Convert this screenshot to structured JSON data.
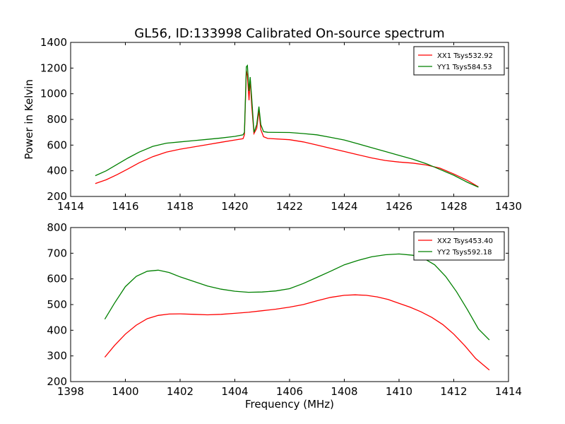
{
  "figure": {
    "title": "GL56, ID:133998 Calibrated On-source spectrum",
    "ylabel": "Power in Kelvin",
    "xlabel": "Frequency (MHz)"
  },
  "chart_data": [
    {
      "type": "line",
      "xlim": [
        1414,
        1430
      ],
      "ylim": [
        200,
        1400
      ],
      "xticks": [
        1414,
        1416,
        1418,
        1420,
        1422,
        1424,
        1426,
        1428,
        1430
      ],
      "yticks": [
        200,
        400,
        600,
        800,
        1000,
        1200,
        1400
      ],
      "legend_position": "top-right",
      "series": [
        {
          "name": "XX1 Tsys532.92",
          "color": "#ff0000",
          "points": [
            [
              1414.9,
              300
            ],
            [
              1415.3,
              330
            ],
            [
              1415.7,
              370
            ],
            [
              1416.1,
              415
            ],
            [
              1416.5,
              462
            ],
            [
              1417.0,
              510
            ],
            [
              1417.5,
              545
            ],
            [
              1418.0,
              568
            ],
            [
              1418.5,
              586
            ],
            [
              1419.0,
              604
            ],
            [
              1419.5,
              622
            ],
            [
              1420.0,
              640
            ],
            [
              1420.3,
              650
            ],
            [
              1420.35,
              680
            ],
            [
              1420.42,
              1180
            ],
            [
              1420.46,
              1140
            ],
            [
              1420.52,
              950
            ],
            [
              1420.56,
              1120
            ],
            [
              1420.62,
              900
            ],
            [
              1420.7,
              690
            ],
            [
              1420.8,
              730
            ],
            [
              1420.88,
              870
            ],
            [
              1420.95,
              720
            ],
            [
              1421.05,
              665
            ],
            [
              1421.2,
              652
            ],
            [
              1422.0,
              642
            ],
            [
              1422.5,
              625
            ],
            [
              1423.0,
              600
            ],
            [
              1423.5,
              575
            ],
            [
              1424.0,
              550
            ],
            [
              1424.5,
              525
            ],
            [
              1425.0,
              500
            ],
            [
              1425.5,
              480
            ],
            [
              1426.0,
              468
            ],
            [
              1426.5,
              460
            ],
            [
              1427.0,
              445
            ],
            [
              1427.5,
              420
            ],
            [
              1428.0,
              375
            ],
            [
              1428.5,
              325
            ],
            [
              1428.9,
              275
            ]
          ]
        },
        {
          "name": "YY1 Tsys584.53",
          "color": "#008000",
          "points": [
            [
              1414.9,
              362
            ],
            [
              1415.3,
              400
            ],
            [
              1415.7,
              450
            ],
            [
              1416.1,
              500
            ],
            [
              1416.5,
              545
            ],
            [
              1417.0,
              590
            ],
            [
              1417.5,
              615
            ],
            [
              1418.0,
              625
            ],
            [
              1418.5,
              635
            ],
            [
              1419.0,
              645
            ],
            [
              1419.5,
              655
            ],
            [
              1420.0,
              668
            ],
            [
              1420.3,
              680
            ],
            [
              1420.35,
              700
            ],
            [
              1420.42,
              1210
            ],
            [
              1420.46,
              1220
            ],
            [
              1420.52,
              1020
            ],
            [
              1420.56,
              1130
            ],
            [
              1420.62,
              960
            ],
            [
              1420.7,
              700
            ],
            [
              1420.8,
              760
            ],
            [
              1420.88,
              900
            ],
            [
              1420.95,
              760
            ],
            [
              1421.05,
              705
            ],
            [
              1421.2,
              700
            ],
            [
              1422.0,
              698
            ],
            [
              1422.5,
              690
            ],
            [
              1423.0,
              680
            ],
            [
              1423.5,
              660
            ],
            [
              1424.0,
              640
            ],
            [
              1424.5,
              610
            ],
            [
              1425.0,
              580
            ],
            [
              1425.5,
              550
            ],
            [
              1426.0,
              520
            ],
            [
              1426.5,
              490
            ],
            [
              1427.0,
              455
            ],
            [
              1427.5,
              410
            ],
            [
              1428.0,
              365
            ],
            [
              1428.5,
              310
            ],
            [
              1428.9,
              272
            ]
          ]
        }
      ]
    },
    {
      "type": "line",
      "xlim": [
        1398,
        1414
      ],
      "ylim": [
        200,
        800
      ],
      "xticks": [
        1398,
        1400,
        1402,
        1404,
        1406,
        1408,
        1410,
        1412,
        1414
      ],
      "yticks": [
        200,
        300,
        400,
        500,
        600,
        700,
        800
      ],
      "legend_position": "top-right",
      "series": [
        {
          "name": "XX2 Tsys453.40",
          "color": "#ff0000",
          "points": [
            [
              1399.25,
              295
            ],
            [
              1399.6,
              340
            ],
            [
              1400.0,
              385
            ],
            [
              1400.4,
              420
            ],
            [
              1400.8,
              445
            ],
            [
              1401.2,
              458
            ],
            [
              1401.6,
              463
            ],
            [
              1402.0,
              464
            ],
            [
              1402.5,
              462
            ],
            [
              1403.0,
              460
            ],
            [
              1403.5,
              462
            ],
            [
              1404.0,
              466
            ],
            [
              1404.5,
              470
            ],
            [
              1405.0,
              476
            ],
            [
              1405.5,
              482
            ],
            [
              1406.0,
              490
            ],
            [
              1406.5,
              500
            ],
            [
              1407.0,
              515
            ],
            [
              1407.5,
              528
            ],
            [
              1408.0,
              536
            ],
            [
              1408.4,
              538
            ],
            [
              1408.8,
              536
            ],
            [
              1409.2,
              530
            ],
            [
              1409.6,
              520
            ],
            [
              1410.0,
              505
            ],
            [
              1410.4,
              490
            ],
            [
              1410.8,
              472
            ],
            [
              1411.2,
              450
            ],
            [
              1411.6,
              422
            ],
            [
              1412.0,
              385
            ],
            [
              1412.4,
              340
            ],
            [
              1412.8,
              290
            ],
            [
              1413.3,
              245
            ]
          ]
        },
        {
          "name": "YY2 Tsys592.18",
          "color": "#008000",
          "points": [
            [
              1399.25,
              443
            ],
            [
              1399.6,
              505
            ],
            [
              1400.0,
              570
            ],
            [
              1400.4,
              610
            ],
            [
              1400.8,
              630
            ],
            [
              1401.2,
              634
            ],
            [
              1401.6,
              625
            ],
            [
              1402.0,
              608
            ],
            [
              1402.5,
              590
            ],
            [
              1403.0,
              572
            ],
            [
              1403.5,
              560
            ],
            [
              1404.0,
              552
            ],
            [
              1404.5,
              548
            ],
            [
              1405.0,
              549
            ],
            [
              1405.5,
              553
            ],
            [
              1406.0,
              562
            ],
            [
              1406.5,
              582
            ],
            [
              1407.0,
              606
            ],
            [
              1407.5,
              630
            ],
            [
              1408.0,
              655
            ],
            [
              1408.5,
              672
            ],
            [
              1409.0,
              686
            ],
            [
              1409.5,
              694
            ],
            [
              1410.0,
              697
            ],
            [
              1410.5,
              692
            ],
            [
              1410.9,
              680
            ],
            [
              1411.3,
              655
            ],
            [
              1411.7,
              610
            ],
            [
              1412.1,
              550
            ],
            [
              1412.5,
              480
            ],
            [
              1412.9,
              405
            ],
            [
              1413.3,
              362
            ]
          ]
        }
      ]
    }
  ]
}
